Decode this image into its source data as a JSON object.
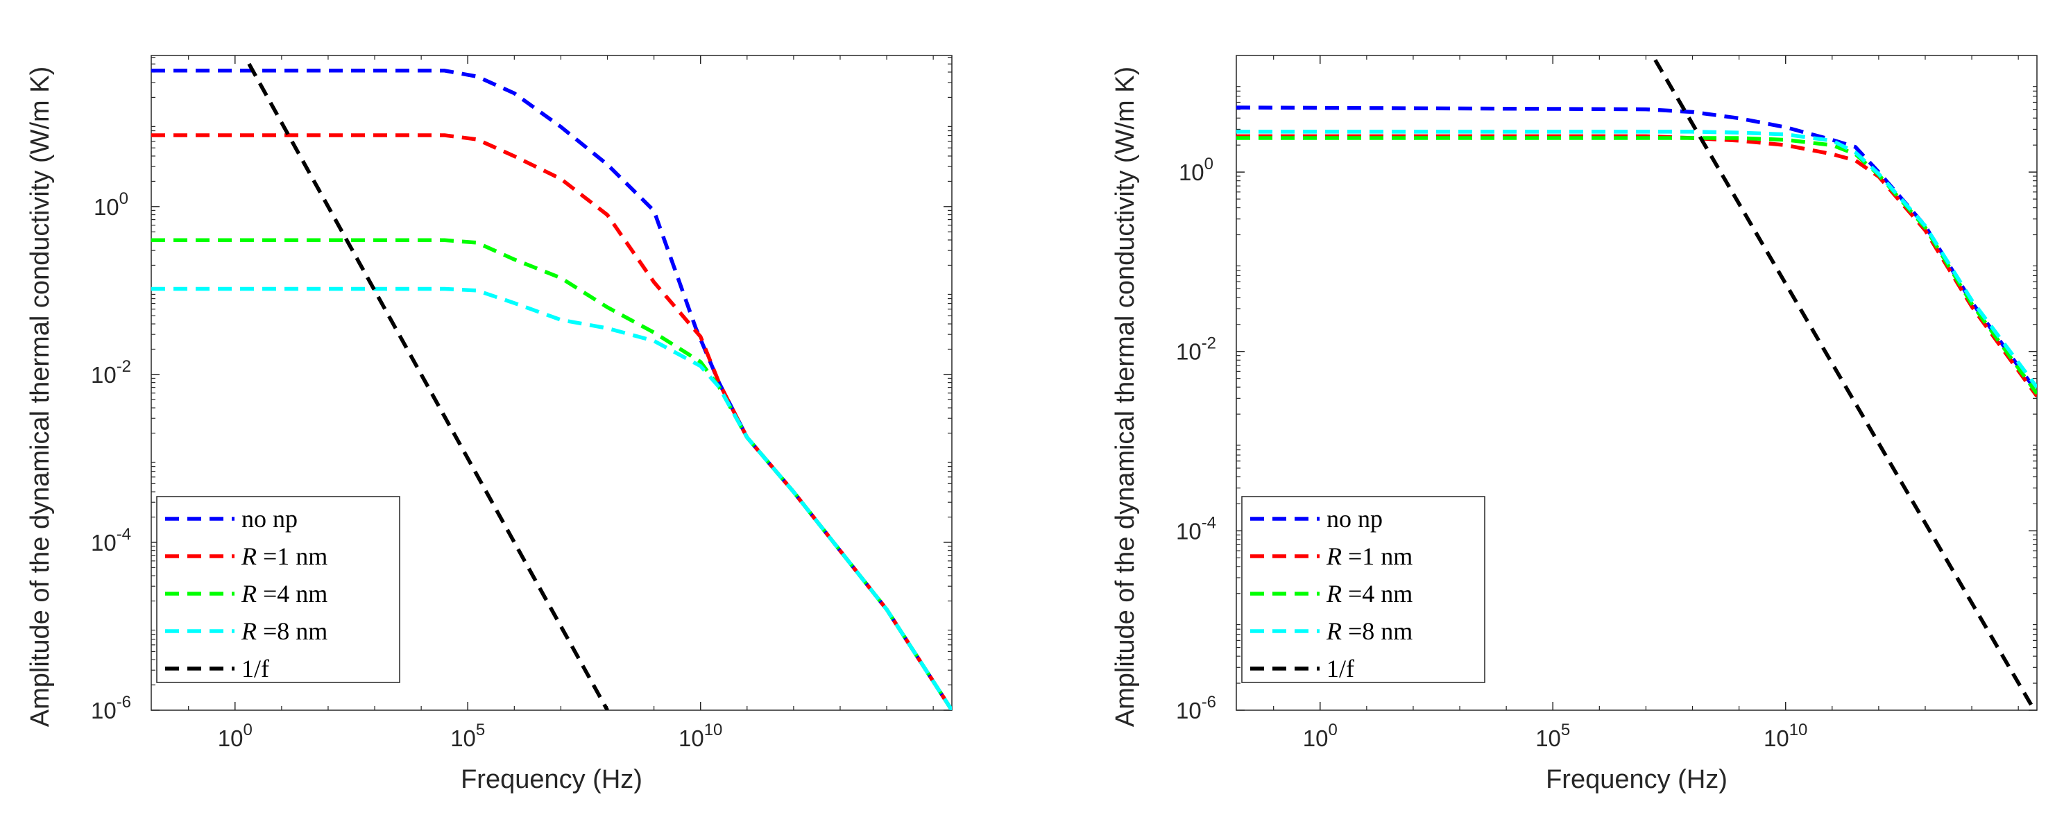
{
  "chart_data": [
    {
      "type": "line",
      "scale": "loglog",
      "xlabel": "Frequency (Hz)",
      "ylabel": "Amplitude of the dynamical thermal conductivity (W/m K)",
      "xlim_log10": [
        -1.8,
        15.4
      ],
      "ylim_log10": [
        -6,
        1.8
      ],
      "x_ticks": [
        {
          "base": "10",
          "exp": "0",
          "log": 0
        },
        {
          "base": "10",
          "exp": "5",
          "log": 5
        },
        {
          "base": "10",
          "exp": "10",
          "log": 10
        }
      ],
      "y_ticks": [
        {
          "base": "10",
          "exp": "0",
          "log": 0
        },
        {
          "base": "10",
          "exp": "-2",
          "log": -2
        },
        {
          "base": "10",
          "exp": "-4",
          "log": -4
        },
        {
          "base": "10",
          "exp": "-6",
          "log": -6
        }
      ],
      "series": [
        {
          "name": "no np",
          "sym": "",
          "rest": "no np",
          "color": "#0000ff",
          "points_log10": [
            [
              -1.8,
              1.62
            ],
            [
              4.5,
              1.62
            ],
            [
              5.2,
              1.55
            ],
            [
              6,
              1.35
            ],
            [
              7,
              0.95
            ],
            [
              8,
              0.5
            ],
            [
              9,
              -0.05
            ],
            [
              9.9,
              -1.45
            ],
            [
              10.4,
              -2.1
            ],
            [
              11,
              -2.75
            ],
            [
              12,
              -3.4
            ],
            [
              13,
              -4.1
            ],
            [
              14,
              -4.8
            ],
            [
              15.4,
              -6
            ]
          ]
        },
        {
          "name": "R =1 nm",
          "sym": "R",
          "rest": " =1 nm",
          "color": "#ff0000",
          "points_log10": [
            [
              -1.8,
              0.85
            ],
            [
              4.5,
              0.85
            ],
            [
              5.2,
              0.8
            ],
            [
              6,
              0.6
            ],
            [
              7,
              0.33
            ],
            [
              8,
              -0.1
            ],
            [
              9,
              -0.9
            ],
            [
              10,
              -1.55
            ],
            [
              10.4,
              -2.1
            ],
            [
              11,
              -2.75
            ],
            [
              12,
              -3.4
            ],
            [
              13,
              -4.1
            ],
            [
              14,
              -4.8
            ],
            [
              15.4,
              -6
            ]
          ]
        },
        {
          "name": "R =4 nm",
          "sym": "R",
          "rest": " =4 nm",
          "color": "#00ff00",
          "points_log10": [
            [
              -1.8,
              -0.4
            ],
            [
              4.5,
              -0.4
            ],
            [
              5.2,
              -0.43
            ],
            [
              6,
              -0.63
            ],
            [
              7,
              -0.85
            ],
            [
              8,
              -1.2
            ],
            [
              9,
              -1.5
            ],
            [
              10,
              -1.85
            ],
            [
              10.4,
              -2.15
            ],
            [
              11,
              -2.75
            ],
            [
              12,
              -3.4
            ],
            [
              13,
              -4.1
            ],
            [
              14,
              -4.8
            ],
            [
              15.4,
              -6
            ]
          ]
        },
        {
          "name": "R =8 nm",
          "sym": "R",
          "rest": " =8 nm",
          "color": "#00ffff",
          "points_log10": [
            [
              -1.8,
              -0.98
            ],
            [
              4.5,
              -0.98
            ],
            [
              5.2,
              -1.0
            ],
            [
              6,
              -1.15
            ],
            [
              7,
              -1.35
            ],
            [
              8,
              -1.45
            ],
            [
              9,
              -1.6
            ],
            [
              10,
              -1.9
            ],
            [
              10.4,
              -2.15
            ],
            [
              11,
              -2.75
            ],
            [
              12,
              -3.4
            ],
            [
              13,
              -4.1
            ],
            [
              14,
              -4.8
            ],
            [
              15.4,
              -6
            ]
          ]
        },
        {
          "name": "1/f",
          "sym": "",
          "rest": "1/f",
          "color": "#000000",
          "points_log10": [
            [
              0.3,
              1.7
            ],
            [
              8,
              -6
            ]
          ]
        }
      ],
      "legend": {
        "location": "bottom-left"
      }
    },
    {
      "type": "line",
      "scale": "loglog",
      "xlabel": "Frequency (Hz)",
      "ylabel": "Amplitude of the dynamical thermal conductivity (W/m K)",
      "xlim_log10": [
        -1.8,
        15.4
      ],
      "ylim_log10": [
        -6,
        1.3
      ],
      "x_ticks": [
        {
          "base": "10",
          "exp": "0",
          "log": 0
        },
        {
          "base": "10",
          "exp": "5",
          "log": 5
        },
        {
          "base": "10",
          "exp": "10",
          "log": 10
        }
      ],
      "y_ticks": [
        {
          "base": "10",
          "exp": "0",
          "log": 0
        },
        {
          "base": "10",
          "exp": "-2",
          "log": -2
        },
        {
          "base": "10",
          "exp": "-4",
          "log": -4
        },
        {
          "base": "10",
          "exp": "-6",
          "log": -6
        }
      ],
      "series": [
        {
          "name": "no np",
          "sym": "",
          "rest": "no np",
          "color": "#0000ff",
          "points_log10": [
            [
              -1.8,
              0.72
            ],
            [
              7,
              0.7
            ],
            [
              8,
              0.67
            ],
            [
              9,
              0.6
            ],
            [
              10,
              0.5
            ],
            [
              11,
              0.36
            ],
            [
              11.5,
              0.28
            ],
            [
              12,
              0.0
            ],
            [
              13,
              -0.6
            ],
            [
              14,
              -1.45
            ],
            [
              15.4,
              -2.45
            ]
          ]
        },
        {
          "name": "R =1 nm",
          "sym": "R",
          "rest": " =1 nm",
          "color": "#ff0000",
          "points_log10": [
            [
              -1.8,
              0.4
            ],
            [
              7,
              0.4
            ],
            [
              8,
              0.38
            ],
            [
              9,
              0.35
            ],
            [
              10,
              0.3
            ],
            [
              11,
              0.2
            ],
            [
              11.5,
              0.13
            ],
            [
              12,
              -0.05
            ],
            [
              13,
              -0.65
            ],
            [
              14,
              -1.5
            ],
            [
              15.4,
              -2.5
            ]
          ]
        },
        {
          "name": "R =4 nm",
          "sym": "R",
          "rest": " =4 nm",
          "color": "#00ff00",
          "points_log10": [
            [
              -1.8,
              0.38
            ],
            [
              7,
              0.38
            ],
            [
              8,
              0.38
            ],
            [
              9,
              0.38
            ],
            [
              10,
              0.36
            ],
            [
              11,
              0.3
            ],
            [
              11.5,
              0.2
            ],
            [
              12,
              -0.03
            ],
            [
              13,
              -0.62
            ],
            [
              14,
              -1.47
            ],
            [
              15.4,
              -2.47
            ]
          ]
        },
        {
          "name": "R =8 nm",
          "sym": "R",
          "rest": " =8 nm",
          "color": "#00ffff",
          "points_log10": [
            [
              -1.8,
              0.45
            ],
            [
              7,
              0.45
            ],
            [
              8,
              0.45
            ],
            [
              9,
              0.44
            ],
            [
              10,
              0.42
            ],
            [
              11,
              0.35
            ],
            [
              11.5,
              0.22
            ],
            [
              12,
              -0.02
            ],
            [
              13,
              -0.6
            ],
            [
              14,
              -1.43
            ],
            [
              15.4,
              -2.4
            ]
          ]
        },
        {
          "name": "1/f",
          "sym": "",
          "rest": "1/f",
          "color": "#000000",
          "points_log10": [
            [
              7.2,
              1.25
            ],
            [
              15.4,
              -6.05
            ]
          ]
        }
      ],
      "legend": {
        "location": "bottom-left"
      }
    }
  ]
}
